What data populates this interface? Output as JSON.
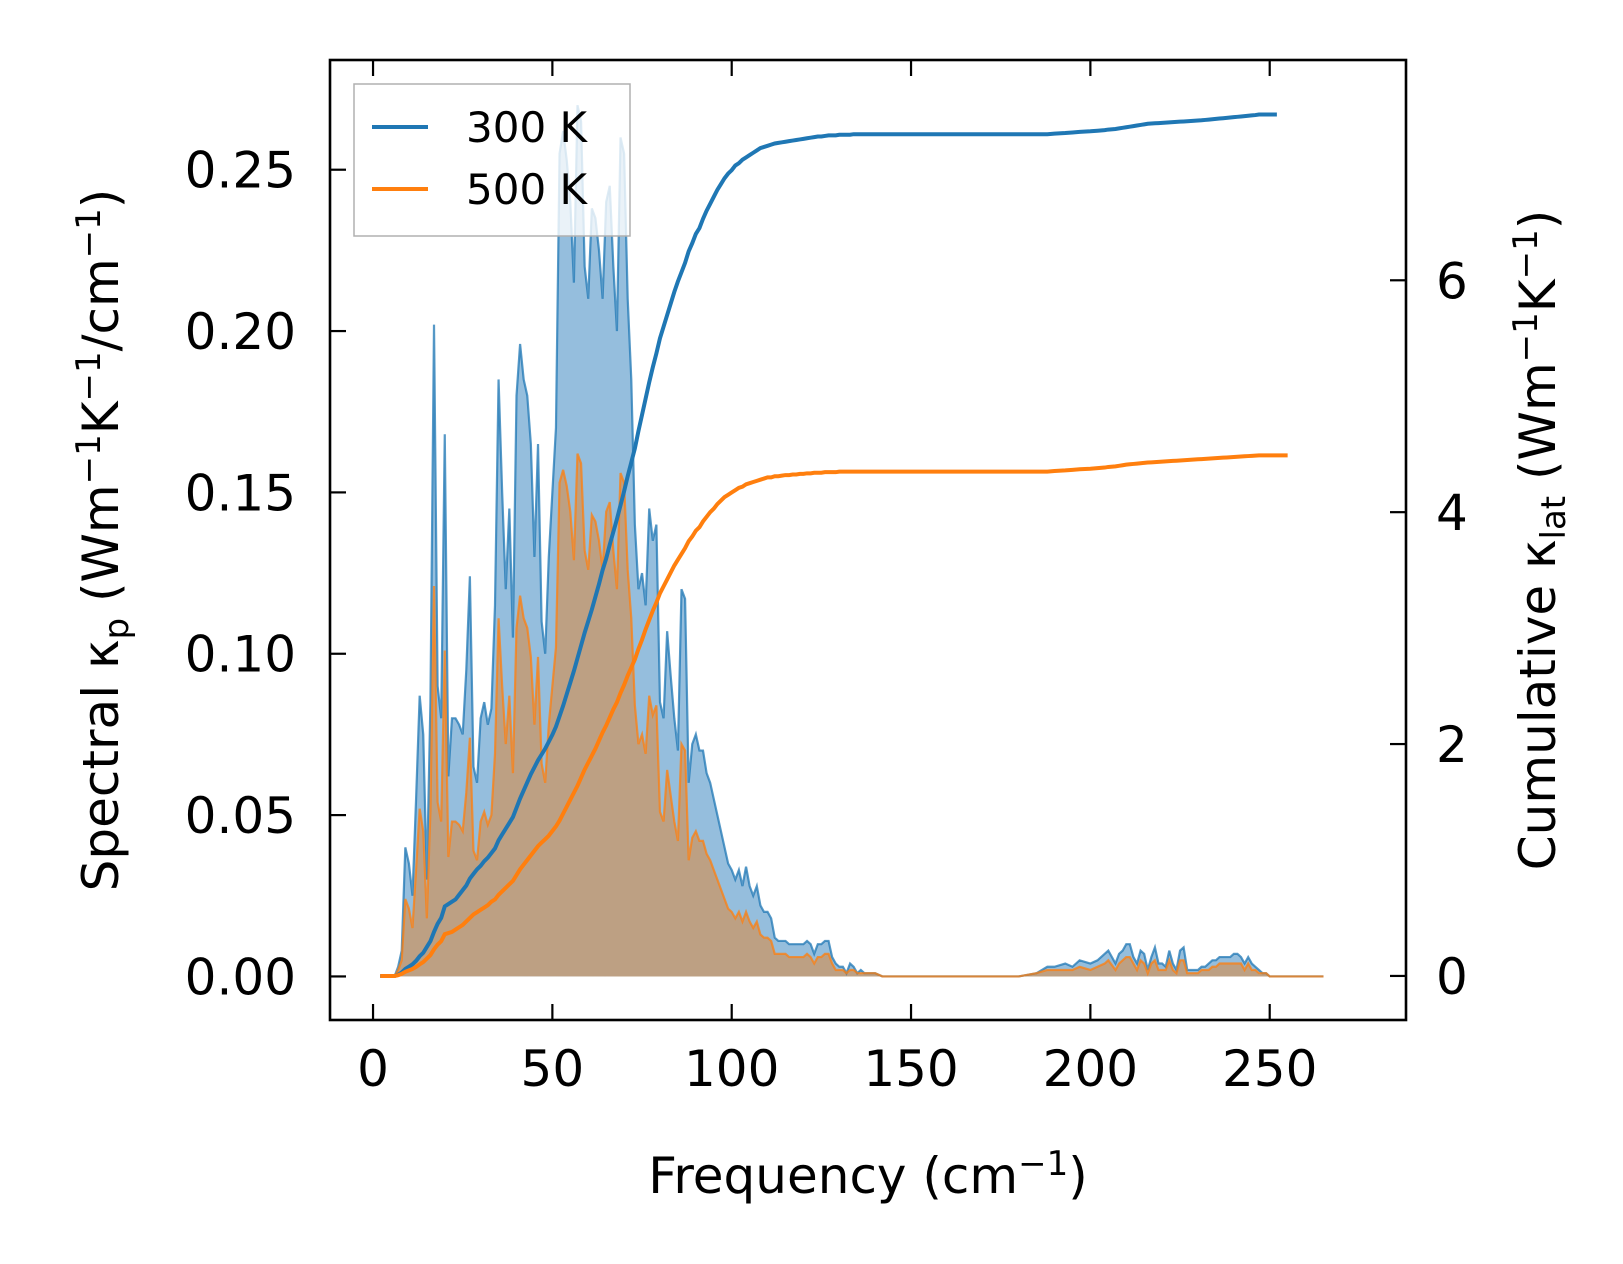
{
  "chart_data": {
    "type": "line",
    "xlabel": "Frequency (cm",
    "xlabel_sup": "−1",
    "xlabel_tail": ")",
    "ylabel_left": {
      "p1": "Spectral κ",
      "p1_sub": "p",
      "p2": " (Wm",
      "sup1": "−1",
      "p3": "K",
      "sup2": "−1",
      "p4": "/cm",
      "sup3": "−1",
      "p5": ")"
    },
    "ylabel_right": {
      "p1": "Cumulative κ",
      "p1_sub": "lat",
      "p2": " (Wm",
      "sup1": "−1",
      "p3": "K",
      "sup2": "−1",
      "p4": ")"
    },
    "xlim": [
      -12,
      288
    ],
    "ylim_left": [
      -0.0135,
      0.284
    ],
    "ylim_right": [
      -0.38,
      7.9
    ],
    "x_ticks": [
      0,
      50,
      100,
      150,
      200,
      250
    ],
    "x_tick_labels": [
      "0",
      "50",
      "100",
      "150",
      "200",
      "250"
    ],
    "y_left_ticks": [
      0.0,
      0.05,
      0.1,
      0.15,
      0.2,
      0.25
    ],
    "y_left_tick_labels": [
      "0.00",
      "0.05",
      "0.10",
      "0.15",
      "0.20",
      "0.25"
    ],
    "y_right_ticks": [
      0,
      2,
      4,
      6
    ],
    "y_right_tick_labels": [
      "0",
      "2",
      "4",
      "6"
    ],
    "legend": {
      "position": "top-left",
      "entries": [
        "300 K",
        "500 K"
      ]
    },
    "spectral_x": [
      2,
      4,
      6,
      7,
      8,
      9,
      10,
      11,
      12,
      13,
      14,
      15,
      16,
      17,
      18,
      19,
      20,
      21,
      22,
      23,
      24,
      25,
      26,
      27,
      28,
      29,
      30,
      31,
      32,
      33,
      34,
      35,
      36,
      37,
      38,
      39,
      40,
      41,
      42,
      43,
      44,
      45,
      46,
      47,
      48,
      49,
      50,
      51,
      52,
      53,
      54,
      55,
      56,
      57,
      58,
      59,
      60,
      61,
      62,
      63,
      64,
      65,
      66,
      67,
      68,
      69,
      70,
      71,
      72,
      73,
      74,
      75,
      76,
      77,
      78,
      79,
      80,
      81,
      82,
      83,
      84,
      85,
      86,
      87,
      88,
      89,
      90,
      91,
      92,
      93,
      94,
      95,
      96,
      97,
      98,
      99,
      100,
      101,
      102,
      103,
      104,
      105,
      106,
      107,
      108,
      109,
      110,
      111,
      112,
      113,
      114,
      115,
      116,
      117,
      118,
      119,
      120,
      121,
      122,
      123,
      124,
      125,
      126,
      127,
      128,
      129,
      130,
      131,
      132,
      133,
      134,
      135,
      136,
      137,
      138,
      139,
      140,
      142,
      145,
      150,
      155,
      160,
      165,
      170,
      175,
      180,
      185,
      188,
      190,
      193,
      195,
      197,
      200,
      202,
      204,
      205,
      207,
      208,
      209,
      210,
      211,
      212,
      213,
      214,
      215,
      216,
      217,
      218,
      219,
      220,
      221,
      222,
      223,
      224,
      225,
      226,
      227,
      228,
      229,
      230,
      231,
      232,
      233,
      234,
      235,
      236,
      237,
      238,
      239,
      240,
      241,
      242,
      243,
      244,
      245,
      246,
      247,
      248,
      249,
      250,
      252,
      255,
      260,
      265,
      270,
      275
    ],
    "series": [
      {
        "name": "300 K",
        "color": "#1f77b4",
        "fill": "#95bedd",
        "spectral": [
          0,
          0,
          0,
          0.003,
          0.008,
          0.04,
          0.035,
          0.025,
          0.055,
          0.087,
          0.075,
          0.03,
          0.085,
          0.202,
          0.09,
          0.08,
          0.168,
          0.062,
          0.08,
          0.08,
          0.078,
          0.075,
          0.095,
          0.124,
          0.065,
          0.06,
          0.08,
          0.085,
          0.078,
          0.083,
          0.115,
          0.185,
          0.15,
          0.12,
          0.145,
          0.105,
          0.18,
          0.196,
          0.185,
          0.18,
          0.165,
          0.13,
          0.165,
          0.11,
          0.1,
          0.13,
          0.15,
          0.17,
          0.255,
          0.262,
          0.253,
          0.24,
          0.215,
          0.27,
          0.265,
          0.22,
          0.21,
          0.238,
          0.235,
          0.225,
          0.21,
          0.24,
          0.245,
          0.22,
          0.2,
          0.26,
          0.255,
          0.21,
          0.185,
          0.14,
          0.12,
          0.125,
          0.115,
          0.145,
          0.135,
          0.14,
          0.085,
          0.08,
          0.107,
          0.093,
          0.08,
          0.07,
          0.12,
          0.117,
          0.06,
          0.072,
          0.075,
          0.07,
          0.07,
          0.063,
          0.06,
          0.055,
          0.05,
          0.045,
          0.04,
          0.035,
          0.033,
          0.03,
          0.033,
          0.028,
          0.034,
          0.028,
          0.025,
          0.028,
          0.022,
          0.02,
          0.02,
          0.018,
          0.012,
          0.011,
          0.011,
          0.011,
          0.01,
          0.01,
          0.01,
          0.01,
          0.01,
          0.011,
          0.01,
          0.007,
          0.01,
          0.01,
          0.011,
          0.011,
          0.006,
          0.004,
          0.003,
          0.003,
          0.001,
          0.004,
          0.003,
          0.001,
          0.002,
          0.001,
          0.001,
          0.001,
          0.001,
          0,
          0,
          0,
          0,
          0,
          0,
          0,
          0,
          0,
          0.001,
          0.003,
          0.003,
          0.004,
          0.003,
          0.005,
          0.004,
          0.005,
          0.007,
          0.008,
          0.004,
          0.007,
          0.008,
          0.01,
          0.01,
          0.006,
          0.004,
          0.008,
          0.007,
          0.002,
          0.006,
          0.009,
          0.004,
          0.004,
          0.003,
          0.008,
          0.004,
          0.002,
          0.008,
          0.009,
          0.002,
          0.002,
          0.002,
          0.002,
          0.003,
          0.003,
          0.004,
          0.005,
          0.005,
          0.006,
          0.006,
          0.006,
          0.006,
          0.007,
          0.007,
          0.006,
          0.004,
          0.006,
          0.004,
          0.003,
          0.002,
          0.001,
          0.001,
          0,
          0,
          0,
          0,
          0
        ],
        "cumulative": [
          0,
          0,
          0,
          0.01,
          0.03,
          0.06,
          0.08,
          0.1,
          0.13,
          0.17,
          0.2,
          0.25,
          0.3,
          0.38,
          0.45,
          0.5,
          0.6,
          0.62,
          0.64,
          0.66,
          0.7,
          0.74,
          0.78,
          0.84,
          0.88,
          0.92,
          0.95,
          0.99,
          1.02,
          1.06,
          1.1,
          1.17,
          1.22,
          1.27,
          1.32,
          1.37,
          1.45,
          1.53,
          1.6,
          1.67,
          1.74,
          1.8,
          1.86,
          1.91,
          1.96,
          2.02,
          2.08,
          2.15,
          2.24,
          2.33,
          2.43,
          2.53,
          2.63,
          2.74,
          2.85,
          2.96,
          3.06,
          3.16,
          3.27,
          3.38,
          3.5,
          3.6,
          3.72,
          3.83,
          3.94,
          4.06,
          4.18,
          4.31,
          4.43,
          4.55,
          4.7,
          4.84,
          4.98,
          5.12,
          5.25,
          5.37,
          5.5,
          5.6,
          5.7,
          5.8,
          5.9,
          5.99,
          6.07,
          6.15,
          6.25,
          6.32,
          6.4,
          6.45,
          6.53,
          6.6,
          6.66,
          6.72,
          6.78,
          6.83,
          6.88,
          6.92,
          6.95,
          6.99,
          7.01,
          7.04,
          7.06,
          7.08,
          7.1,
          7.12,
          7.14,
          7.15,
          7.16,
          7.17,
          7.18,
          7.185,
          7.19,
          7.195,
          7.2,
          7.205,
          7.21,
          7.215,
          7.22,
          7.225,
          7.23,
          7.235,
          7.24,
          7.24,
          7.245,
          7.25,
          7.25,
          7.25,
          7.255,
          7.255,
          7.255,
          7.255,
          7.26,
          7.26,
          7.26,
          7.26,
          7.26,
          7.26,
          7.26,
          7.26,
          7.26,
          7.26,
          7.26,
          7.26,
          7.26,
          7.26,
          7.26,
          7.26,
          7.26,
          7.26,
          7.265,
          7.27,
          7.275,
          7.28,
          7.285,
          7.29,
          7.295,
          7.3,
          7.305,
          7.31,
          7.315,
          7.32,
          7.325,
          7.33,
          7.335,
          7.34,
          7.345,
          7.35,
          7.352,
          7.354,
          7.356,
          7.358,
          7.36,
          7.362,
          7.364,
          7.366,
          7.368,
          7.37,
          7.372,
          7.374,
          7.376,
          7.378,
          7.38,
          7.383,
          7.386,
          7.389,
          7.392,
          7.395,
          7.398,
          7.401,
          7.404,
          7.407,
          7.41,
          7.413,
          7.416,
          7.419,
          7.422,
          7.425,
          7.43,
          7.43,
          7.43,
          7.43,
          7.43
        ]
      },
      {
        "name": "500 K",
        "color": "#ff7f0e",
        "fill": "#c49b73",
        "spectral": [
          0,
          0,
          0,
          0.002,
          0.005,
          0.024,
          0.021,
          0.015,
          0.033,
          0.052,
          0.045,
          0.018,
          0.051,
          0.121,
          0.054,
          0.048,
          0.101,
          0.037,
          0.048,
          0.048,
          0.047,
          0.045,
          0.057,
          0.074,
          0.039,
          0.036,
          0.048,
          0.051,
          0.047,
          0.05,
          0.069,
          0.111,
          0.09,
          0.072,
          0.087,
          0.063,
          0.108,
          0.118,
          0.111,
          0.108,
          0.099,
          0.078,
          0.099,
          0.066,
          0.06,
          0.078,
          0.09,
          0.102,
          0.153,
          0.157,
          0.152,
          0.144,
          0.129,
          0.162,
          0.159,
          0.132,
          0.126,
          0.143,
          0.141,
          0.135,
          0.126,
          0.144,
          0.147,
          0.132,
          0.12,
          0.156,
          0.153,
          0.126,
          0.111,
          0.084,
          0.072,
          0.075,
          0.069,
          0.087,
          0.081,
          0.084,
          0.051,
          0.048,
          0.064,
          0.056,
          0.048,
          0.042,
          0.072,
          0.07,
          0.036,
          0.043,
          0.045,
          0.042,
          0.042,
          0.038,
          0.036,
          0.033,
          0.03,
          0.027,
          0.024,
          0.021,
          0.02,
          0.018,
          0.02,
          0.017,
          0.02,
          0.017,
          0.015,
          0.017,
          0.013,
          0.012,
          0.012,
          0.011,
          0.007,
          0.007,
          0.007,
          0.007,
          0.006,
          0.006,
          0.006,
          0.006,
          0.006,
          0.007,
          0.006,
          0.004,
          0.006,
          0.006,
          0.007,
          0.007,
          0.004,
          0.002,
          0.002,
          0.002,
          0.001,
          0.002,
          0.002,
          0.001,
          0.001,
          0.001,
          0.001,
          0.001,
          0.001,
          0,
          0,
          0,
          0,
          0,
          0,
          0,
          0,
          0,
          0.001,
          0.002,
          0.002,
          0.002,
          0.002,
          0.003,
          0.002,
          0.003,
          0.004,
          0.005,
          0.002,
          0.004,
          0.005,
          0.006,
          0.006,
          0.004,
          0.002,
          0.005,
          0.004,
          0.001,
          0.004,
          0.005,
          0.002,
          0.002,
          0.002,
          0.005,
          0.002,
          0.001,
          0.005,
          0.005,
          0.001,
          0.001,
          0.001,
          0.001,
          0.002,
          0.002,
          0.002,
          0.003,
          0.003,
          0.004,
          0.004,
          0.004,
          0.004,
          0.004,
          0.004,
          0.004,
          0.002,
          0.004,
          0.002,
          0.002,
          0.001,
          0.001,
          0.001,
          0,
          0,
          0,
          0,
          0
        ],
        "cumulative": [
          0,
          0,
          0,
          0.006,
          0.018,
          0.036,
          0.048,
          0.06,
          0.078,
          0.1,
          0.12,
          0.15,
          0.18,
          0.23,
          0.27,
          0.3,
          0.36,
          0.37,
          0.38,
          0.4,
          0.42,
          0.44,
          0.47,
          0.5,
          0.53,
          0.55,
          0.57,
          0.59,
          0.61,
          0.64,
          0.66,
          0.7,
          0.73,
          0.76,
          0.79,
          0.82,
          0.87,
          0.92,
          0.96,
          1.0,
          1.04,
          1.08,
          1.12,
          1.15,
          1.18,
          1.21,
          1.25,
          1.29,
          1.34,
          1.4,
          1.46,
          1.52,
          1.58,
          1.64,
          1.71,
          1.78,
          1.84,
          1.9,
          1.96,
          2.03,
          2.1,
          2.16,
          2.23,
          2.3,
          2.36,
          2.44,
          2.51,
          2.59,
          2.66,
          2.73,
          2.82,
          2.9,
          2.99,
          3.07,
          3.15,
          3.22,
          3.3,
          3.36,
          3.42,
          3.48,
          3.54,
          3.59,
          3.64,
          3.69,
          3.75,
          3.79,
          3.84,
          3.87,
          3.92,
          3.96,
          4.0,
          4.03,
          4.07,
          4.1,
          4.13,
          4.15,
          4.17,
          4.19,
          4.21,
          4.22,
          4.24,
          4.25,
          4.26,
          4.27,
          4.28,
          4.29,
          4.3,
          4.3,
          4.31,
          4.31,
          4.315,
          4.32,
          4.32,
          4.325,
          4.325,
          4.33,
          4.33,
          4.335,
          4.335,
          4.34,
          4.34,
          4.34,
          4.345,
          4.345,
          4.345,
          4.345,
          4.35,
          4.35,
          4.35,
          4.35,
          4.35,
          4.35,
          4.35,
          4.35,
          4.35,
          4.35,
          4.35,
          4.35,
          4.35,
          4.35,
          4.35,
          4.35,
          4.35,
          4.35,
          4.35,
          4.35,
          4.35,
          4.35,
          4.355,
          4.36,
          4.365,
          4.37,
          4.375,
          4.38,
          4.385,
          4.39,
          4.395,
          4.4,
          4.405,
          4.41,
          4.413,
          4.416,
          4.419,
          4.422,
          4.425,
          4.428,
          4.43,
          4.432,
          4.434,
          4.436,
          4.438,
          4.44,
          4.442,
          4.444,
          4.446,
          4.448,
          4.45,
          4.452,
          4.454,
          4.456,
          4.458,
          4.46,
          4.462,
          4.464,
          4.466,
          4.468,
          4.47,
          4.472,
          4.474,
          4.476,
          4.478,
          4.48,
          4.482,
          4.484,
          4.486,
          4.488,
          4.49,
          4.49,
          4.49,
          4.49,
          4.49,
          4.49
        ]
      }
    ]
  }
}
